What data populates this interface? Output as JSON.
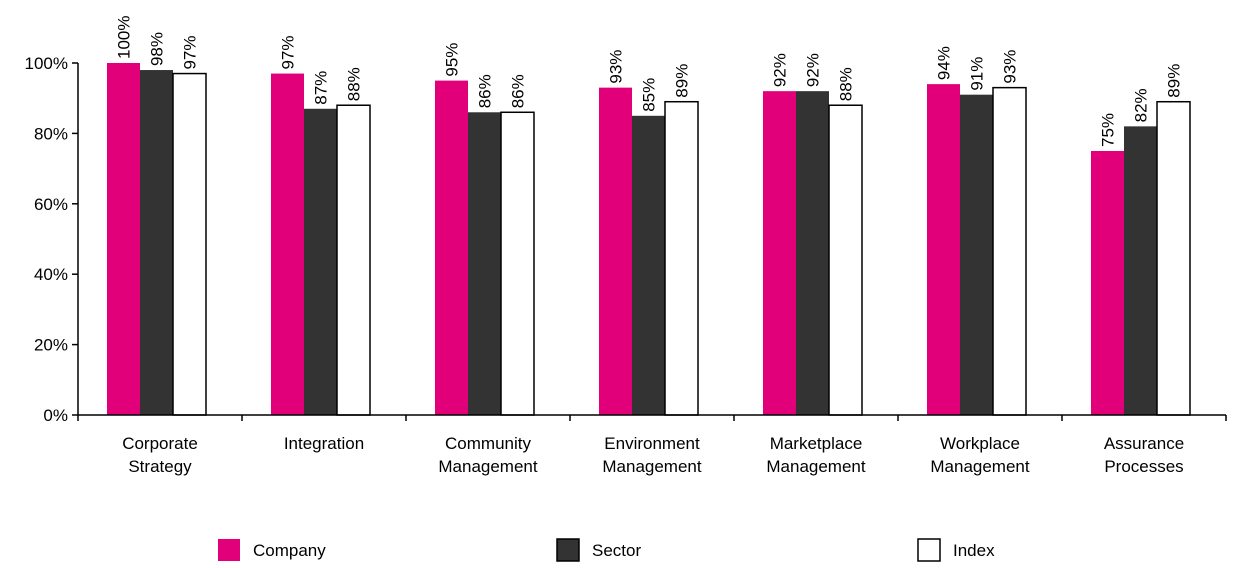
{
  "chart_data": {
    "type": "bar",
    "categories": [
      [
        "Corporate",
        "Strategy"
      ],
      [
        "Integration"
      ],
      [
        "Community",
        "Management"
      ],
      [
        "Environment",
        "Management"
      ],
      [
        "Marketplace",
        "Management"
      ],
      [
        "Workplace",
        "Management"
      ],
      [
        "Assurance",
        "Processes"
      ]
    ],
    "series": [
      {
        "name": "Company",
        "color": "#e2007a",
        "values": [
          100,
          97,
          95,
          93,
          92,
          94,
          75
        ],
        "labels": [
          "100%",
          "97%",
          "95%",
          "93%",
          "92%",
          "94%",
          "75%"
        ]
      },
      {
        "name": "Sector",
        "color": "#333333",
        "values": [
          98,
          87,
          86,
          85,
          92,
          91,
          82
        ],
        "labels": [
          "98%",
          "87%",
          "86%",
          "85%",
          "92%",
          "91%",
          "82%"
        ]
      },
      {
        "name": "Index",
        "color": "#ffffff",
        "values": [
          97,
          88,
          86,
          89,
          88,
          93,
          89
        ],
        "labels": [
          "97%",
          "88%",
          "86%",
          "89%",
          "88%",
          "93%",
          "89%"
        ]
      }
    ],
    "ylim": [
      0,
      100
    ],
    "yticks": [
      "0%",
      "20%",
      "40%",
      "60%",
      "80%",
      "100%"
    ],
    "grid": false,
    "legend_position": "bottom"
  }
}
